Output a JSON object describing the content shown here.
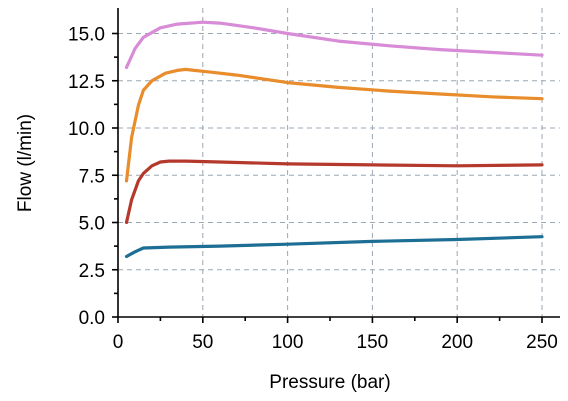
{
  "chart_data": {
    "type": "line",
    "title": "",
    "xlabel": "Pressure (bar)",
    "ylabel": "Flow (l/min)",
    "xlim": [
      0,
      255
    ],
    "ylim": [
      0,
      16.5
    ],
    "xticks": [
      0,
      50,
      100,
      150,
      200,
      250
    ],
    "yticks": [
      0,
      2.5,
      5,
      7.5,
      10,
      12.5,
      15
    ],
    "xtick_labels": [
      "0",
      "50",
      "100",
      "150",
      "200",
      "250"
    ],
    "ytick_labels": [
      "0.0",
      "2.5",
      "5.0",
      "7.5",
      "10.0",
      "12.5",
      "15.0"
    ],
    "grid": true,
    "legend": false,
    "series": [
      {
        "color": "#d88bd6",
        "x": [
          5,
          10,
          15,
          25,
          35,
          50,
          60,
          80,
          100,
          130,
          160,
          190,
          220,
          250
        ],
        "y": [
          13.2,
          14.2,
          14.8,
          15.3,
          15.5,
          15.6,
          15.55,
          15.3,
          15.0,
          14.6,
          14.35,
          14.15,
          14.0,
          13.85
        ]
      },
      {
        "color": "#e88c2c",
        "x": [
          5,
          8,
          12,
          15,
          20,
          28,
          35,
          40,
          45,
          55,
          70,
          100,
          130,
          160,
          190,
          220,
          250
        ],
        "y": [
          7.2,
          9.5,
          11.2,
          12.0,
          12.5,
          12.9,
          13.05,
          13.1,
          13.05,
          12.95,
          12.8,
          12.4,
          12.15,
          11.95,
          11.8,
          11.65,
          11.55
        ]
      },
      {
        "color": "#b5382c",
        "x": [
          5,
          8,
          12,
          15,
          20,
          25,
          30,
          40,
          60,
          100,
          150,
          200,
          250
        ],
        "y": [
          5.0,
          6.2,
          7.2,
          7.6,
          8.0,
          8.2,
          8.25,
          8.25,
          8.2,
          8.1,
          8.05,
          8.0,
          8.05
        ]
      },
      {
        "color": "#1c6e94",
        "x": [
          5,
          10,
          15,
          30,
          60,
          100,
          150,
          200,
          250
        ],
        "y": [
          3.2,
          3.45,
          3.65,
          3.7,
          3.75,
          3.85,
          4.0,
          4.1,
          4.25
        ]
      }
    ]
  }
}
